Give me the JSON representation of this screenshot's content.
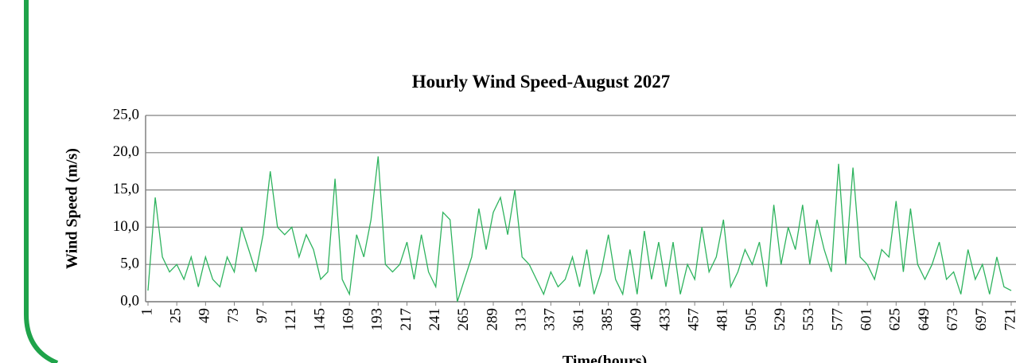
{
  "chart_data": {
    "type": "line",
    "title": "Hourly Wind Speed-August 2027",
    "xlabel": "Time(hours)",
    "ylabel": "Wind Speed (m/s)",
    "color": "#2eb35e",
    "grid": true,
    "xlim": [
      -1,
      725
    ],
    "ylim": [
      0,
      25
    ],
    "xticks": [
      1,
      25,
      49,
      73,
      97,
      121,
      145,
      169,
      193,
      217,
      241,
      265,
      289,
      313,
      337,
      361,
      385,
      409,
      433,
      457,
      481,
      505,
      529,
      553,
      577,
      601,
      625,
      649,
      673,
      697,
      721
    ],
    "yticks": [
      {
        "value": 0,
        "label": "0,0"
      },
      {
        "value": 5,
        "label": "5,0"
      },
      {
        "value": 10,
        "label": "10,0"
      },
      {
        "value": 15,
        "label": "15,0"
      },
      {
        "value": 20,
        "label": "20,0"
      },
      {
        "value": 25,
        "label": "25,0"
      }
    ],
    "x": [
      1,
      7,
      13,
      19,
      25,
      31,
      37,
      43,
      49,
      55,
      61,
      67,
      73,
      79,
      85,
      91,
      97,
      103,
      109,
      115,
      121,
      127,
      133,
      139,
      145,
      151,
      157,
      163,
      169,
      175,
      181,
      187,
      193,
      199,
      205,
      211,
      217,
      223,
      229,
      235,
      241,
      247,
      253,
      259,
      265,
      271,
      277,
      283,
      289,
      295,
      301,
      307,
      313,
      319,
      325,
      331,
      337,
      343,
      349,
      355,
      361,
      367,
      373,
      379,
      385,
      391,
      397,
      403,
      409,
      415,
      421,
      427,
      433,
      439,
      445,
      451,
      457,
      463,
      469,
      475,
      481,
      487,
      493,
      499,
      505,
      511,
      517,
      523,
      529,
      535,
      541,
      547,
      553,
      559,
      565,
      571,
      577,
      583,
      589,
      595,
      601,
      607,
      613,
      619,
      625,
      631,
      637,
      643,
      649,
      655,
      661,
      667,
      673,
      679,
      685,
      691,
      697,
      703,
      709,
      715,
      721
    ],
    "values": [
      1.5,
      14,
      6,
      4,
      5,
      3,
      6,
      2,
      6,
      3,
      2,
      6,
      4,
      10,
      7,
      4,
      9,
      17.5,
      10,
      9,
      10,
      6,
      9,
      7,
      3,
      4,
      16.5,
      3,
      1,
      9,
      6,
      11,
      19.5,
      5,
      4,
      5,
      8,
      3,
      9,
      4,
      2,
      12,
      11,
      0,
      3,
      6,
      12.5,
      7,
      12,
      14,
      9,
      15,
      6,
      5,
      3,
      1,
      4,
      2,
      3,
      6,
      2,
      7,
      1,
      4,
      9,
      3,
      1,
      7,
      1,
      9.5,
      3,
      8,
      2,
      8,
      1,
      5,
      3,
      10,
      4,
      6,
      11,
      2,
      4,
      7,
      5,
      8,
      2,
      13,
      5,
      10,
      7,
      13,
      5,
      11,
      7,
      4,
      18.5,
      5,
      18,
      6,
      5,
      3,
      7,
      6,
      13.5,
      4,
      12.5,
      5,
      3,
      5,
      8,
      3,
      4,
      1,
      7,
      3,
      5,
      1,
      6,
      2,
      1.5
    ]
  }
}
